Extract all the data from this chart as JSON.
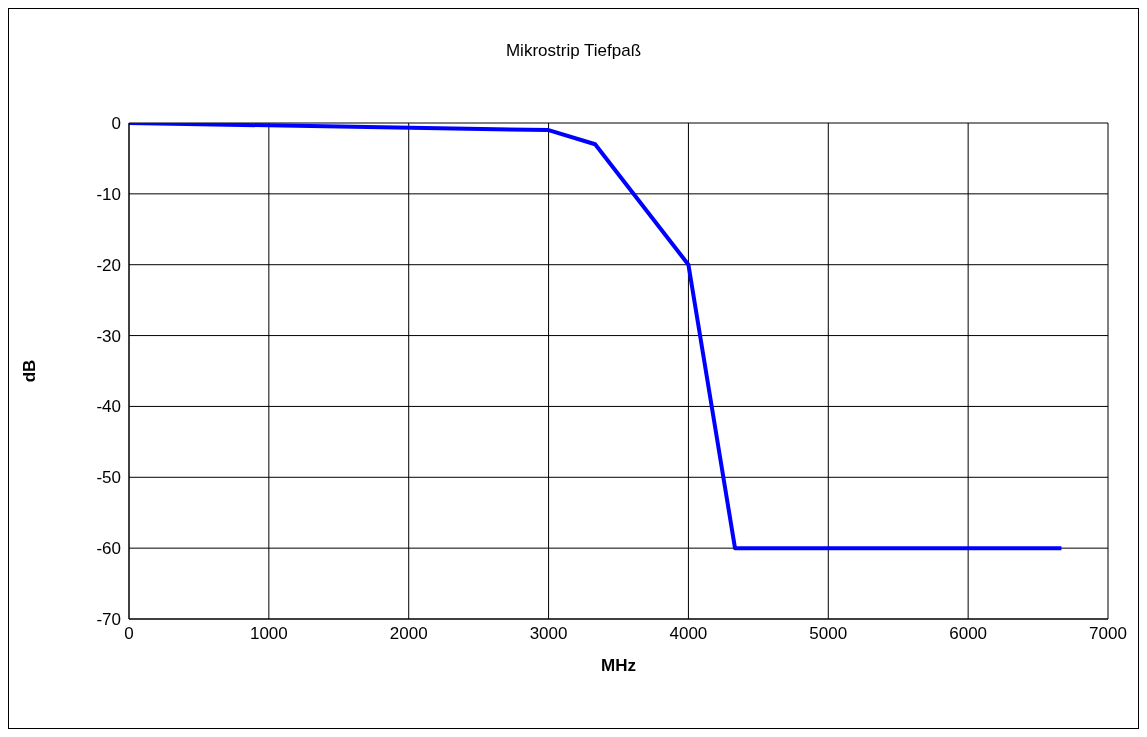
{
  "chart_data": {
    "type": "line",
    "title": "Mikrostrip Tiefpaß",
    "xlabel": "MHz",
    "ylabel": "dB",
    "series": [
      {
        "color": "#0000ff",
        "x": [
          0,
          3000,
          3333,
          4000,
          4333,
          6667
        ],
        "values": [
          0,
          -1,
          -3,
          -20,
          -60,
          -60
        ]
      }
    ],
    "xlim": [
      0,
      7000
    ],
    "xticks": [
      0,
      1000,
      2000,
      3000,
      4000,
      5000,
      6000,
      7000
    ],
    "ylim": [
      -70,
      0
    ],
    "yticks": [
      -70,
      -60,
      -50,
      -40,
      -30,
      -20,
      -10,
      0
    ],
    "grid": true,
    "legend": false,
    "marker": "none",
    "line_style": "solid"
  }
}
